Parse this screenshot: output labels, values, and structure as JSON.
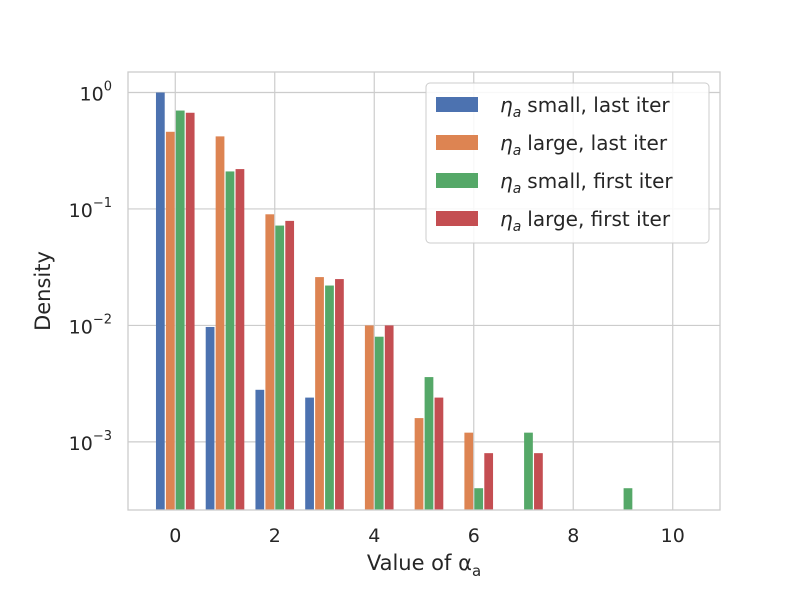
{
  "chart_data": {
    "type": "bar",
    "title": "",
    "xlabel": "Value of α",
    "xlabel_sub": "a",
    "ylabel": "Density",
    "y_scale": "log",
    "ylim": [
      0.00026,
      1.5
    ],
    "xlim": [
      -0.95,
      10.95
    ],
    "x": [
      0,
      1,
      2,
      3,
      4,
      5,
      6,
      7,
      8,
      9,
      10
    ],
    "x_ticks": [
      0,
      2,
      4,
      6,
      8,
      10
    ],
    "x_tick_labels": [
      "0",
      "2",
      "4",
      "6",
      "8",
      "10"
    ],
    "y_ticks": [
      0.001,
      0.01,
      0.1,
      1
    ],
    "y_tick_labels": [
      {
        "base": "10",
        "exp": "−3"
      },
      {
        "base": "10",
        "exp": "−2"
      },
      {
        "base": "10",
        "exp": "−1"
      },
      {
        "base": "10",
        "exp": "0"
      }
    ],
    "grid": true,
    "legend_position": "top-right",
    "series": [
      {
        "name": "small, last iter",
        "symbol": "η",
        "sub": "a",
        "color": "#4c72b0",
        "values": [
          1.0,
          0.0097,
          0.0028,
          0.0024,
          null,
          null,
          null,
          null,
          null,
          null,
          null
        ]
      },
      {
        "name": "large, last iter",
        "symbol": "η",
        "sub": "a",
        "color": "#dd8452",
        "values": [
          0.46,
          0.42,
          0.09,
          0.026,
          0.01,
          0.0016,
          0.0012,
          null,
          null,
          null,
          null
        ]
      },
      {
        "name": "small, first iter",
        "symbol": "η",
        "sub": "a",
        "color": "#55a868",
        "values": [
          0.7,
          0.21,
          0.072,
          0.022,
          0.008,
          0.0036,
          0.0004,
          0.0012,
          null,
          0.0004,
          null
        ]
      },
      {
        "name": "large, first iter",
        "symbol": "η",
        "sub": "a",
        "color": "#c44e52",
        "values": [
          0.67,
          0.22,
          0.079,
          0.025,
          0.01,
          0.0024,
          0.0008,
          0.0008,
          null,
          null,
          null
        ]
      }
    ]
  }
}
